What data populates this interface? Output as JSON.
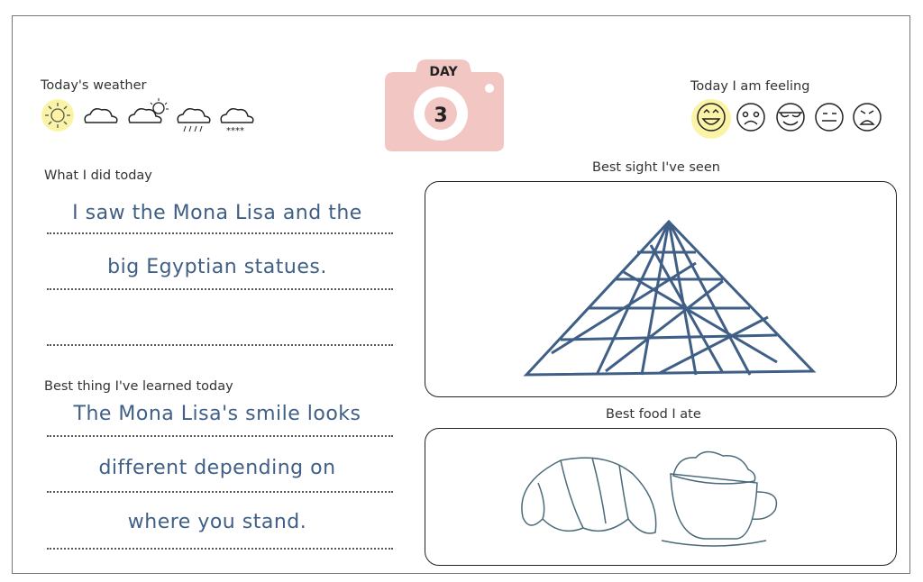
{
  "weather": {
    "label": "Today's weather",
    "icons": [
      "sun-icon",
      "cloud-icon",
      "partly-sunny-icon",
      "rain-icon",
      "snow-icon"
    ],
    "selected": "sun-icon"
  },
  "day": {
    "label": "DAY",
    "number": "3",
    "color": "#f2c6c2"
  },
  "feeling": {
    "label": "Today I am feeling",
    "icons": [
      "happy-face-icon",
      "worried-face-icon",
      "cool-face-icon",
      "neutral-face-icon",
      "angry-face-icon"
    ],
    "selected": "happy-face-icon"
  },
  "did_today": {
    "label": "What I did today",
    "lines": [
      "I saw the Mona Lisa and the",
      "big Egyptian statues.",
      ""
    ]
  },
  "learned": {
    "label": "Best thing I've learned today",
    "lines": [
      "The Mona Lisa's smile looks",
      "different depending on",
      "where you stand."
    ]
  },
  "sight": {
    "label": "Best sight I've seen"
  },
  "food": {
    "label": "Best food I ate"
  },
  "colors": {
    "highlight": "#fbf3a6",
    "ink": "#3f5f86"
  }
}
